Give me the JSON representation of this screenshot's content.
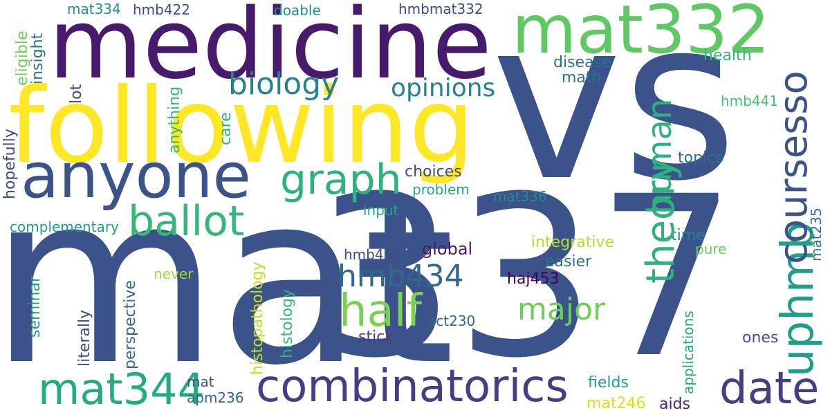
{
  "words": [
    {
      "text": "vs",
      "color": "#3b528b"
    },
    {
      "text": "337",
      "color": "#3b528b"
    },
    {
      "text": "mat",
      "color": "#3b528b"
    },
    {
      "text": "medicine",
      "color": "#481a6c"
    },
    {
      "text": "following",
      "color": "#fde725"
    },
    {
      "text": "mat332",
      "color": "#5ec962"
    },
    {
      "text": "anyone",
      "color": "#3b528b"
    },
    {
      "text": "combinatorics",
      "color": "#433e85"
    },
    {
      "text": "mat344",
      "color": "#25ab82"
    },
    {
      "text": "graph",
      "color": "#2db27d"
    },
    {
      "text": "ballot",
      "color": "#35b779"
    },
    {
      "text": "date",
      "color": "#433e85"
    },
    {
      "text": "half",
      "color": "#7ad151"
    },
    {
      "text": "theory",
      "color": "#2db27d"
    },
    {
      "text": "uphmb",
      "color": "#1f9e89"
    },
    {
      "text": "coursesso",
      "color": "#3b528b"
    },
    {
      "text": "human",
      "color": "#2db27d"
    },
    {
      "text": "biology",
      "color": "#26828e"
    },
    {
      "text": "opinions",
      "color": "#26828e"
    },
    {
      "text": "hmb434",
      "color": "#31688e"
    },
    {
      "text": "major",
      "color": "#6ece58"
    },
    {
      "text": "mat334",
      "color": "#21918c"
    },
    {
      "text": "hmb422",
      "color": "#3e4989"
    },
    {
      "text": "doable",
      "color": "#21918c"
    },
    {
      "text": "hmbmat332",
      "color": "#3e4989"
    },
    {
      "text": "health",
      "color": "#35b779"
    },
    {
      "text": "disease",
      "color": "#2c728e"
    },
    {
      "text": "math",
      "color": "#2c728e"
    },
    {
      "text": "hmb441",
      "color": "#44bf70"
    },
    {
      "text": "topics",
      "color": "#2c728e"
    },
    {
      "text": "mat235",
      "color": "#2c728e"
    },
    {
      "text": "choices",
      "color": "#3e4989"
    },
    {
      "text": "problem",
      "color": "#22a884"
    },
    {
      "text": "mat336",
      "color": "#228c8d"
    },
    {
      "text": "input",
      "color": "#22a884"
    },
    {
      "text": "time",
      "color": "#26828e"
    },
    {
      "text": "pure",
      "color": "#6ece58"
    },
    {
      "text": "hmb452",
      "color": "#3e4989"
    },
    {
      "text": "global",
      "color": "#481a6c"
    },
    {
      "text": "integrative",
      "color": "#b5de2b"
    },
    {
      "text": "easier",
      "color": "#2c728e"
    },
    {
      "text": "haj453",
      "color": "#440154"
    },
    {
      "text": "act230",
      "color": "#31688e"
    },
    {
      "text": "stick",
      "color": "#433e85"
    },
    {
      "text": "ones",
      "color": "#3b528b"
    },
    {
      "text": "fields",
      "color": "#1f9e89"
    },
    {
      "text": "mat246",
      "color": "#d8e219"
    },
    {
      "text": "aids",
      "color": "#482878"
    },
    {
      "text": "applications",
      "color": "#22a884"
    },
    {
      "text": "never",
      "color": "#a0da39"
    },
    {
      "text": "histopathology",
      "color": "#c2df23"
    },
    {
      "text": "histology",
      "color": "#35b779"
    },
    {
      "text": "perspective",
      "color": "#31688e"
    },
    {
      "text": "literally",
      "color": "#3e4989"
    },
    {
      "text": "seminar",
      "color": "#1f9e89"
    },
    {
      "text": "complementary",
      "color": "#1f9e89"
    },
    {
      "text": "hopefully",
      "color": "#3e4989"
    },
    {
      "text": "eligible",
      "color": "#6ece58"
    },
    {
      "text": "insight",
      "color": "#2c728e"
    },
    {
      "text": "lot",
      "color": "#3e4989"
    },
    {
      "text": "anything",
      "color": "#35b779"
    },
    {
      "text": "care",
      "color": "#2db27d"
    },
    {
      "text": "mat",
      "color": "#3b528b"
    },
    {
      "text": "apm236",
      "color": "#31688e"
    }
  ]
}
